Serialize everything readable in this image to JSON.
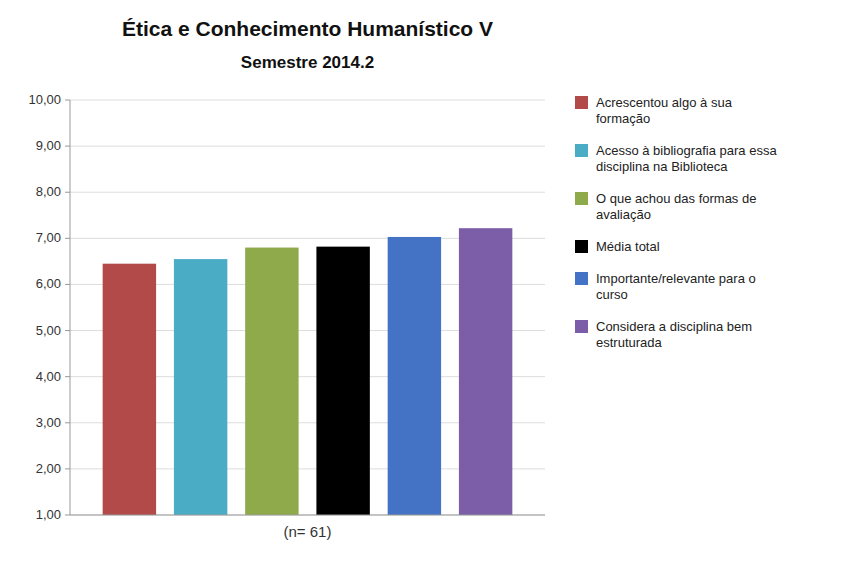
{
  "chart_data": {
    "type": "bar",
    "title": "Ética e Conhecimento Humanístico V",
    "subtitle": "Semestre 2014.2",
    "categories": [
      "(n= 61)"
    ],
    "series": [
      {
        "name": "Acrescentou algo à sua\nformação",
        "color": "#b34a4a",
        "values": [
          6.45
        ]
      },
      {
        "name": "Acesso à bibliografia para essa\ndisciplina na Biblioteca",
        "color": "#4bacc6",
        "values": [
          6.55
        ]
      },
      {
        "name": "O que achou das formas de\navaliação",
        "color": "#8faa4b",
        "values": [
          6.8
        ]
      },
      {
        "name": "Média total",
        "color": "#000000",
        "values": [
          6.82
        ]
      },
      {
        "name": "Importante/relevante para o\ncurso",
        "color": "#4472c4",
        "values": [
          7.03
        ]
      },
      {
        "name": "Considera a disciplina bem\nestruturada",
        "color": "#7b5ea7",
        "values": [
          7.22
        ]
      }
    ],
    "ylim": [
      1.0,
      10.0
    ],
    "yticks": [
      {
        "value": 1.0,
        "label": "1,00"
      },
      {
        "value": 2.0,
        "label": "2,00"
      },
      {
        "value": 3.0,
        "label": "3,00"
      },
      {
        "value": 4.0,
        "label": "4,00"
      },
      {
        "value": 5.0,
        "label": "5,00"
      },
      {
        "value": 6.0,
        "label": "6,00"
      },
      {
        "value": 7.0,
        "label": "7,00"
      },
      {
        "value": 8.0,
        "label": "8,00"
      },
      {
        "value": 9.0,
        "label": "9,00"
      },
      {
        "value": 10.0,
        "label": "10,00"
      }
    ],
    "grid": true,
    "legend": "right"
  }
}
